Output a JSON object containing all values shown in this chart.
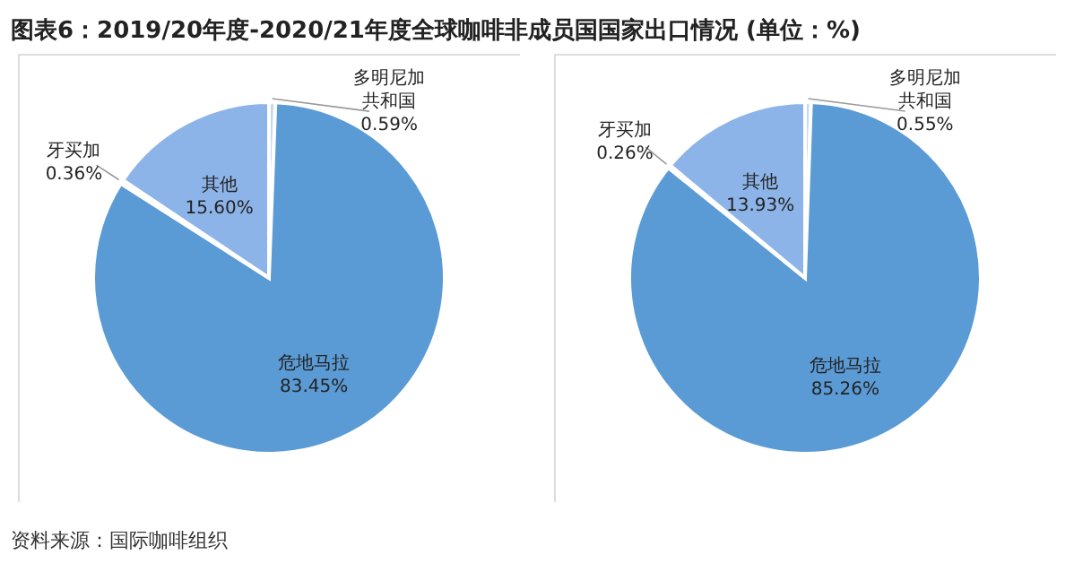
{
  "chart_data": [
    {
      "type": "pie",
      "title": "图表6：2019/20年度-2020/21年度全球咖啡非成员国国家出口情况 (单位：%)",
      "annotations": [
        "资料来源：国际咖啡组织"
      ],
      "categories": [
        "多明尼加共和国",
        "危地马拉",
        "牙买加",
        "其他"
      ],
      "values": [
        0.59,
        83.45,
        0.36,
        15.6
      ],
      "value_labels": [
        "0.59%",
        "83.45%",
        "0.36%",
        "15.60%"
      ],
      "colors": [
        "#c5d9f1",
        "#5b9bd5",
        "#dce6f2",
        "#8db4e8"
      ]
    },
    {
      "type": "pie",
      "categories": [
        "多明尼加共和国",
        "危地马拉",
        "牙买加",
        "其他"
      ],
      "values": [
        0.55,
        85.26,
        0.26,
        13.93
      ],
      "value_labels": [
        "0.55%",
        "85.26%",
        "0.26%",
        "13.93%"
      ],
      "colors": [
        "#c5d9f1",
        "#5b9bd5",
        "#dce6f2",
        "#8db4e8"
      ]
    }
  ]
}
